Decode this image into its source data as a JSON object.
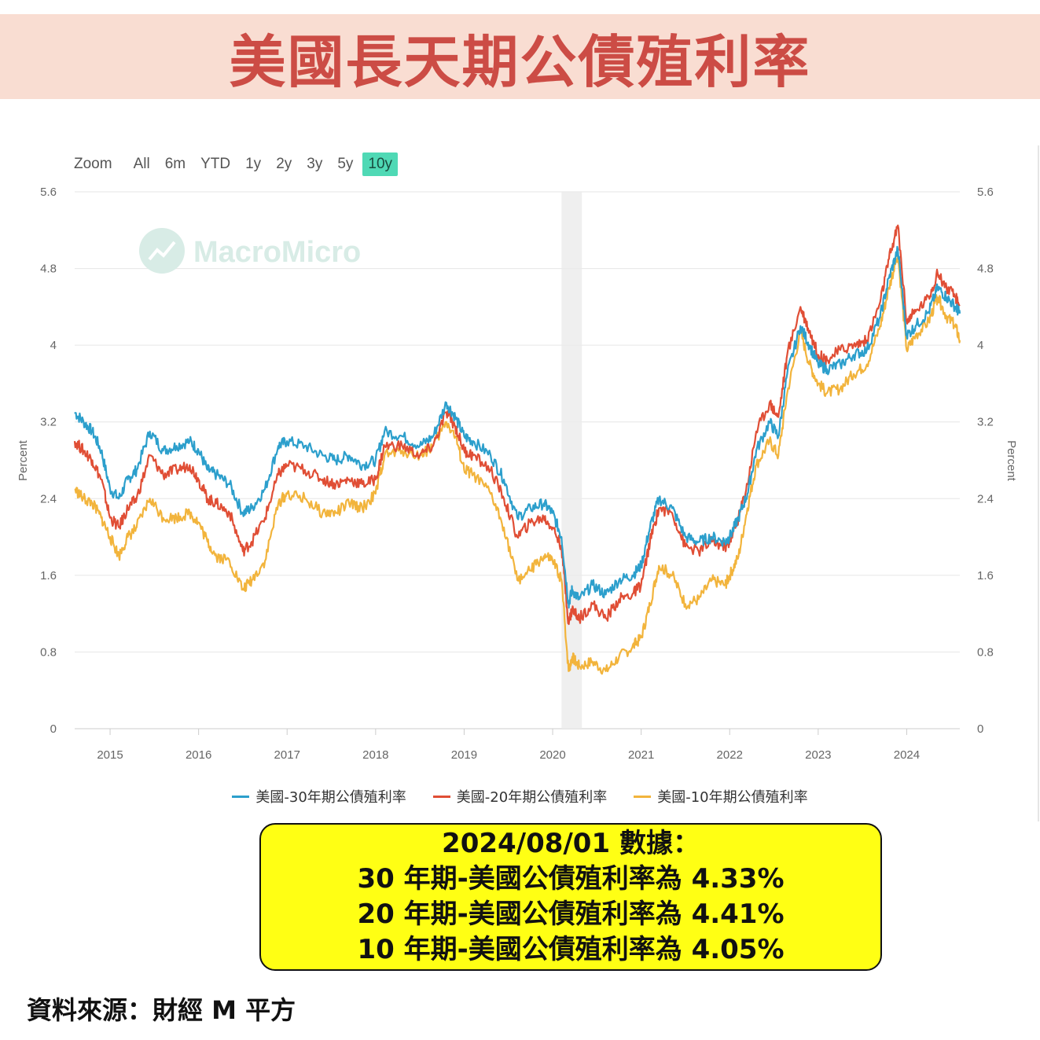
{
  "header": {
    "title": "美國長天期公債殖利率"
  },
  "toolbar": {
    "zoom_label": "Zoom",
    "ranges": [
      "All",
      "6m",
      "YTD",
      "1y",
      "2y",
      "3y",
      "5y",
      "10y"
    ],
    "active_range": "10y"
  },
  "watermark": {
    "text": "MacroMicro"
  },
  "colors": {
    "series_30y": "#2c9fcc",
    "series_20y": "#e04e35",
    "series_10y": "#f2b43c",
    "active_range_bg": "#4fd9b5",
    "title": "#cc4c45",
    "title_band": "#f9ddd2",
    "summary_bg": "#ffff14"
  },
  "chart_data": {
    "type": "line",
    "ylabel_left": "Percent",
    "ylabel_right": "Percent",
    "ylim": [
      0,
      5.6
    ],
    "y_ticks": [
      "0",
      "0.8",
      "1.6",
      "2.4",
      "3.2",
      "4",
      "4.8",
      "5.6"
    ],
    "x_ticks": [
      "2015",
      "2016",
      "2017",
      "2018",
      "2019",
      "2020",
      "2021",
      "2022",
      "2023",
      "2024"
    ],
    "xlim": [
      2014.6,
      2024.6
    ],
    "grid": true,
    "legend_position": "bottom",
    "shaded_period": {
      "start": 2020.1,
      "end": 2020.33
    },
    "series": [
      {
        "name": "美國-30年期公債殖利率",
        "key": "s30",
        "x": [
          2014.6,
          2014.7,
          2014.8,
          2014.9,
          2015.0,
          2015.1,
          2015.2,
          2015.3,
          2015.45,
          2015.6,
          2015.75,
          2015.9,
          2016.0,
          2016.1,
          2016.2,
          2016.35,
          2016.5,
          2016.6,
          2016.75,
          2016.9,
          2017.0,
          2017.2,
          2017.4,
          2017.55,
          2017.7,
          2017.85,
          2018.0,
          2018.1,
          2018.3,
          2018.5,
          2018.65,
          2018.8,
          2018.9,
          2019.0,
          2019.1,
          2019.3,
          2019.45,
          2019.6,
          2019.75,
          2019.9,
          2020.0,
          2020.1,
          2020.18,
          2020.22,
          2020.3,
          2020.45,
          2020.6,
          2020.75,
          2020.9,
          2021.0,
          2021.1,
          2021.2,
          2021.35,
          2021.5,
          2021.65,
          2021.8,
          2021.95,
          2022.0,
          2022.1,
          2022.2,
          2022.3,
          2022.45,
          2022.55,
          2022.65,
          2022.8,
          2022.9,
          2023.0,
          2023.1,
          2023.25,
          2023.4,
          2023.55,
          2023.7,
          2023.8,
          2023.9,
          2024.0,
          2024.1,
          2024.25,
          2024.35,
          2024.45,
          2024.55,
          2024.6
        ],
        "values": [
          3.3,
          3.2,
          3.1,
          2.9,
          2.5,
          2.4,
          2.6,
          2.7,
          3.1,
          2.9,
          2.95,
          3.0,
          2.9,
          2.7,
          2.65,
          2.55,
          2.25,
          2.3,
          2.5,
          2.95,
          3.0,
          2.95,
          2.85,
          2.8,
          2.85,
          2.75,
          2.8,
          3.1,
          3.05,
          2.95,
          3.05,
          3.4,
          3.25,
          3.05,
          3.0,
          2.85,
          2.6,
          2.2,
          2.3,
          2.35,
          2.25,
          2.0,
          1.3,
          1.45,
          1.35,
          1.5,
          1.4,
          1.55,
          1.6,
          1.7,
          2.1,
          2.4,
          2.3,
          2.0,
          1.95,
          2.0,
          1.95,
          2.0,
          2.2,
          2.45,
          2.9,
          3.2,
          3.05,
          3.7,
          4.2,
          4.0,
          3.8,
          3.75,
          3.8,
          3.9,
          3.95,
          4.3,
          4.7,
          5.0,
          4.1,
          4.2,
          4.35,
          4.6,
          4.5,
          4.4,
          4.33
        ]
      },
      {
        "name": "美國-20年期公債殖利率",
        "key": "s20",
        "x": [
          2014.6,
          2014.7,
          2014.8,
          2014.9,
          2015.0,
          2015.1,
          2015.2,
          2015.3,
          2015.45,
          2015.6,
          2015.75,
          2015.9,
          2016.0,
          2016.1,
          2016.2,
          2016.35,
          2016.5,
          2016.6,
          2016.75,
          2016.9,
          2017.0,
          2017.2,
          2017.4,
          2017.55,
          2017.7,
          2017.85,
          2018.0,
          2018.1,
          2018.3,
          2018.5,
          2018.65,
          2018.8,
          2018.9,
          2019.0,
          2019.1,
          2019.3,
          2019.45,
          2019.6,
          2019.75,
          2019.9,
          2020.0,
          2020.1,
          2020.18,
          2020.22,
          2020.3,
          2020.45,
          2020.6,
          2020.75,
          2020.9,
          2021.0,
          2021.1,
          2021.2,
          2021.35,
          2021.5,
          2021.65,
          2021.8,
          2021.95,
          2022.0,
          2022.1,
          2022.2,
          2022.3,
          2022.45,
          2022.55,
          2022.65,
          2022.8,
          2022.9,
          2023.0,
          2023.1,
          2023.25,
          2023.4,
          2023.55,
          2023.7,
          2023.8,
          2023.9,
          2024.0,
          2024.1,
          2024.25,
          2024.35,
          2024.45,
          2024.55,
          2024.6
        ],
        "values": [
          3.0,
          2.9,
          2.8,
          2.6,
          2.2,
          2.1,
          2.3,
          2.4,
          2.85,
          2.65,
          2.7,
          2.75,
          2.6,
          2.4,
          2.35,
          2.25,
          1.85,
          1.95,
          2.2,
          2.65,
          2.75,
          2.7,
          2.6,
          2.55,
          2.6,
          2.55,
          2.6,
          2.95,
          2.95,
          2.85,
          2.95,
          3.3,
          3.15,
          2.9,
          2.85,
          2.7,
          2.4,
          2.0,
          2.15,
          2.2,
          2.1,
          1.9,
          1.1,
          1.25,
          1.15,
          1.3,
          1.15,
          1.35,
          1.4,
          1.5,
          1.95,
          2.3,
          2.25,
          1.9,
          1.85,
          1.95,
          1.9,
          1.95,
          2.2,
          2.55,
          3.1,
          3.4,
          3.25,
          3.9,
          4.4,
          4.15,
          3.9,
          3.85,
          3.95,
          4.0,
          4.05,
          4.45,
          4.9,
          5.25,
          4.25,
          4.35,
          4.5,
          4.75,
          4.6,
          4.5,
          4.41
        ]
      },
      {
        "name": "美國-10年期公債殖利率",
        "key": "s10",
        "x": [
          2014.6,
          2014.7,
          2014.8,
          2014.9,
          2015.0,
          2015.1,
          2015.2,
          2015.3,
          2015.45,
          2015.6,
          2015.75,
          2015.9,
          2016.0,
          2016.1,
          2016.2,
          2016.35,
          2016.5,
          2016.6,
          2016.75,
          2016.9,
          2017.0,
          2017.2,
          2017.4,
          2017.55,
          2017.7,
          2017.85,
          2018.0,
          2018.1,
          2018.3,
          2018.5,
          2018.65,
          2018.8,
          2018.9,
          2019.0,
          2019.1,
          2019.3,
          2019.45,
          2019.6,
          2019.75,
          2019.9,
          2020.0,
          2020.1,
          2020.18,
          2020.22,
          2020.3,
          2020.45,
          2020.6,
          2020.75,
          2020.9,
          2021.0,
          2021.1,
          2021.2,
          2021.35,
          2021.5,
          2021.65,
          2021.8,
          2021.95,
          2022.0,
          2022.1,
          2022.2,
          2022.3,
          2022.45,
          2022.55,
          2022.65,
          2022.8,
          2022.9,
          2023.0,
          2023.1,
          2023.25,
          2023.4,
          2023.55,
          2023.7,
          2023.8,
          2023.9,
          2024.0,
          2024.1,
          2024.25,
          2024.35,
          2024.45,
          2024.55,
          2024.6
        ],
        "values": [
          2.5,
          2.4,
          2.35,
          2.2,
          2.0,
          1.8,
          2.0,
          2.1,
          2.4,
          2.2,
          2.2,
          2.25,
          2.15,
          1.95,
          1.8,
          1.75,
          1.45,
          1.55,
          1.75,
          2.35,
          2.45,
          2.4,
          2.25,
          2.25,
          2.35,
          2.3,
          2.45,
          2.85,
          2.9,
          2.85,
          2.95,
          3.2,
          3.05,
          2.7,
          2.65,
          2.45,
          2.1,
          1.55,
          1.65,
          1.8,
          1.75,
          1.55,
          0.6,
          0.75,
          0.65,
          0.7,
          0.6,
          0.75,
          0.85,
          0.95,
          1.3,
          1.7,
          1.6,
          1.3,
          1.35,
          1.55,
          1.5,
          1.6,
          1.8,
          2.3,
          2.75,
          3.0,
          2.85,
          3.5,
          4.15,
          3.8,
          3.6,
          3.5,
          3.55,
          3.7,
          3.8,
          4.2,
          4.6,
          4.95,
          3.95,
          4.1,
          4.25,
          4.5,
          4.3,
          4.2,
          4.05
        ]
      }
    ]
  },
  "summary": {
    "line1": "2024/08/01 數據：",
    "line2": "30 年期-美國公債殖利率為 4.33%",
    "line3": "20 年期-美國公債殖利率為 4.41%",
    "line4": "10 年期-美國公債殖利率為 4.05%"
  },
  "source": {
    "text": "資料來源：財經 M 平方"
  }
}
